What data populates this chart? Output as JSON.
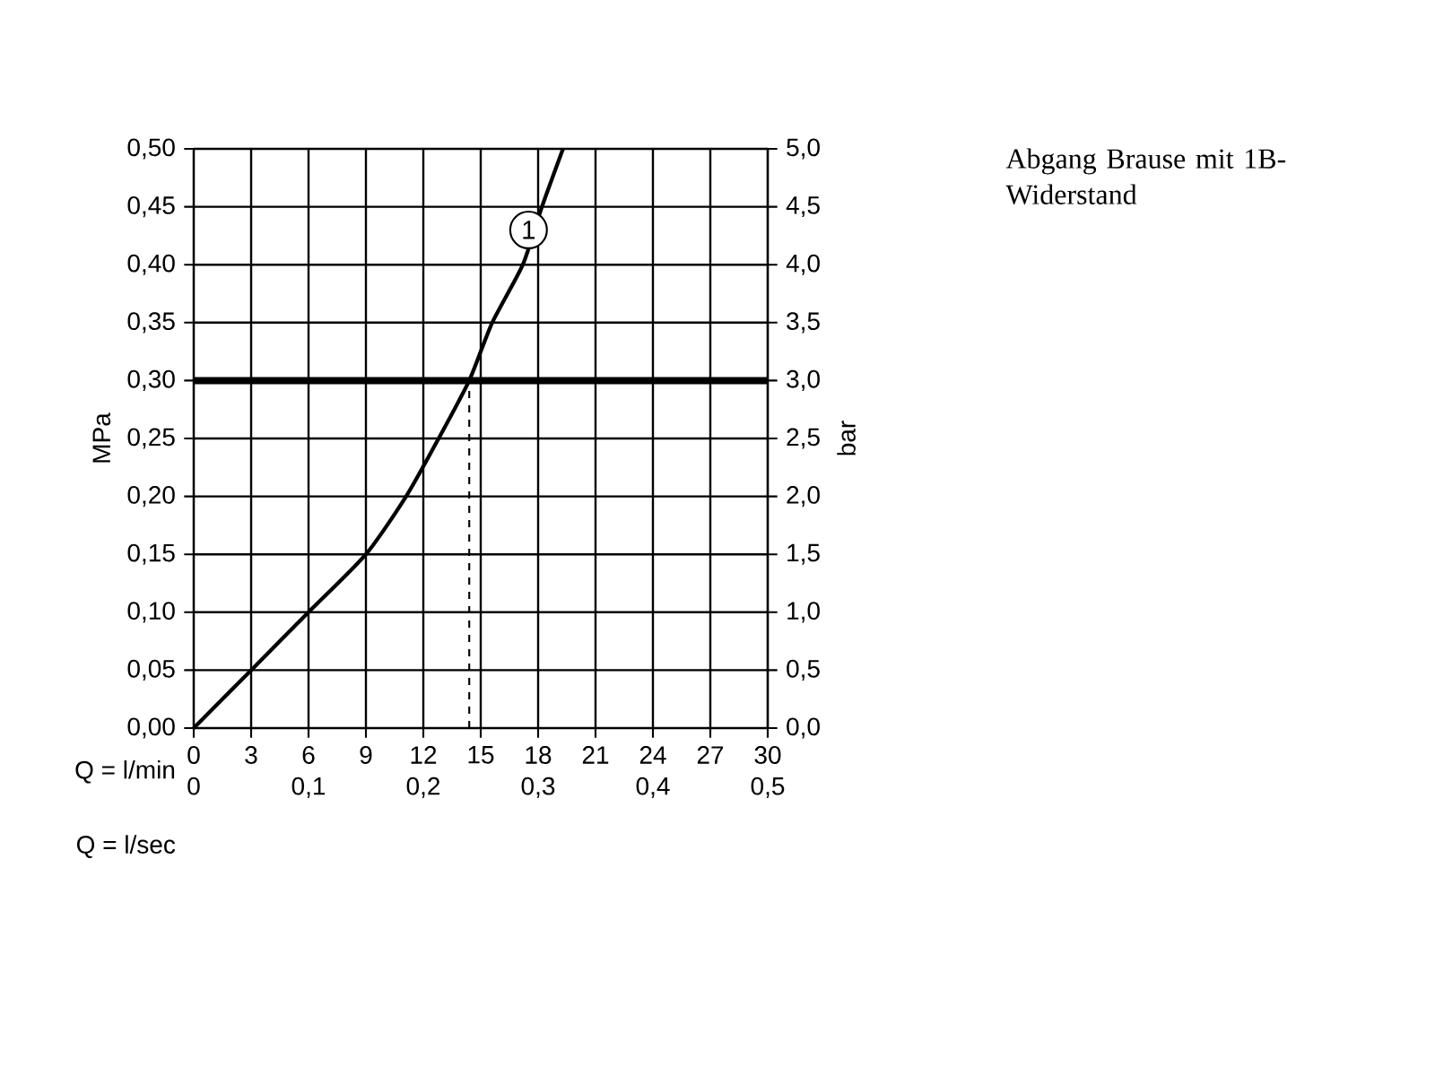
{
  "chart_data": {
    "type": "line",
    "xlabel": "Q = l/min",
    "x2label": "Q = l/sec",
    "ylabel": "MPa",
    "y2label": "bar",
    "xlim": [
      0,
      30
    ],
    "xticks": [
      0,
      3,
      6,
      9,
      12,
      15,
      18,
      21,
      24,
      27,
      30
    ],
    "x2lim": [
      0,
      0.5
    ],
    "x2ticks": [
      0,
      {
        "value": 0.1,
        "label": "0,1"
      },
      {
        "value": 0.2,
        "label": "0,2"
      },
      {
        "value": 0.3,
        "label": "0,3"
      },
      {
        "value": 0.4,
        "label": "0,4"
      },
      {
        "value": 0.5,
        "label": "0,5"
      }
    ],
    "ylim": [
      0,
      0.5
    ],
    "yticks": [
      {
        "value": 0,
        "label": "0,00"
      },
      {
        "value": 0.05,
        "label": "0,05"
      },
      {
        "value": 0.1,
        "label": "0,10"
      },
      {
        "value": 0.15,
        "label": "0,15"
      },
      {
        "value": 0.2,
        "label": "0,20"
      },
      {
        "value": 0.25,
        "label": "0,25"
      },
      {
        "value": 0.3,
        "label": "0,30"
      },
      {
        "value": 0.35,
        "label": "0,35"
      },
      {
        "value": 0.4,
        "label": "0,40"
      },
      {
        "value": 0.45,
        "label": "0,45"
      },
      {
        "value": 0.5,
        "label": "0,50"
      }
    ],
    "y2lim": [
      0,
      5
    ],
    "y2ticks": [
      {
        "value": 0,
        "label": "0,0"
      },
      {
        "value": 0.5,
        "label": "0,5"
      },
      {
        "value": 1,
        "label": "1,0"
      },
      {
        "value": 1.5,
        "label": "1,5"
      },
      {
        "value": 2,
        "label": "2,0"
      },
      {
        "value": 2.5,
        "label": "2,5"
      },
      {
        "value": 3,
        "label": "3,0"
      },
      {
        "value": 3.5,
        "label": "3,5"
      },
      {
        "value": 4,
        "label": "4,0"
      },
      {
        "value": 4.5,
        "label": "4,5"
      },
      {
        "value": 5,
        "label": "5,0"
      }
    ],
    "series": [
      {
        "color": "#000000",
        "x": [
          0,
          3,
          6,
          9,
          11.1,
          12.8,
          14.4,
          15.6,
          17.2,
          18.2,
          19.3
        ],
        "values": [
          0,
          0.05,
          0.1,
          0.15,
          0.2,
          0.25,
          0.3,
          0.35,
          0.4,
          0.45,
          0.5
        ]
      }
    ],
    "grid": true,
    "line_style": "solid",
    "ref_lines": [
      {
        "axis": "y",
        "value": 0.3,
        "color": "#000000"
      },
      {
        "axis": "x",
        "value": 14.4,
        "line_style": "dashed",
        "color": "#000000"
      }
    ],
    "annotations": [
      "Abgang Brause mit 1B-Widerstand",
      {
        "text": "1",
        "x": 17.5,
        "y": 0.43
      }
    ]
  }
}
